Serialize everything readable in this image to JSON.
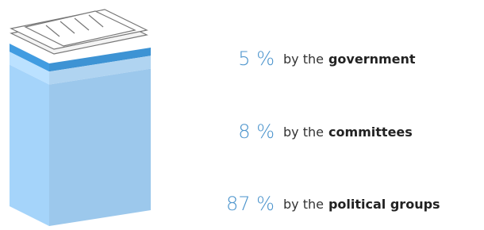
{
  "chart_data": {
    "type": "stacked_box",
    "categories": [
      "government",
      "committees",
      "political groups"
    ],
    "prefix": "by the",
    "values": [
      5,
      8,
      87
    ],
    "value_labels": [
      "5 %",
      "8 %",
      "87 %"
    ],
    "colors": [
      "#3d93d4",
      "#b0d4f1",
      "#9cc8ec"
    ],
    "ylim": [
      0,
      100
    ]
  }
}
